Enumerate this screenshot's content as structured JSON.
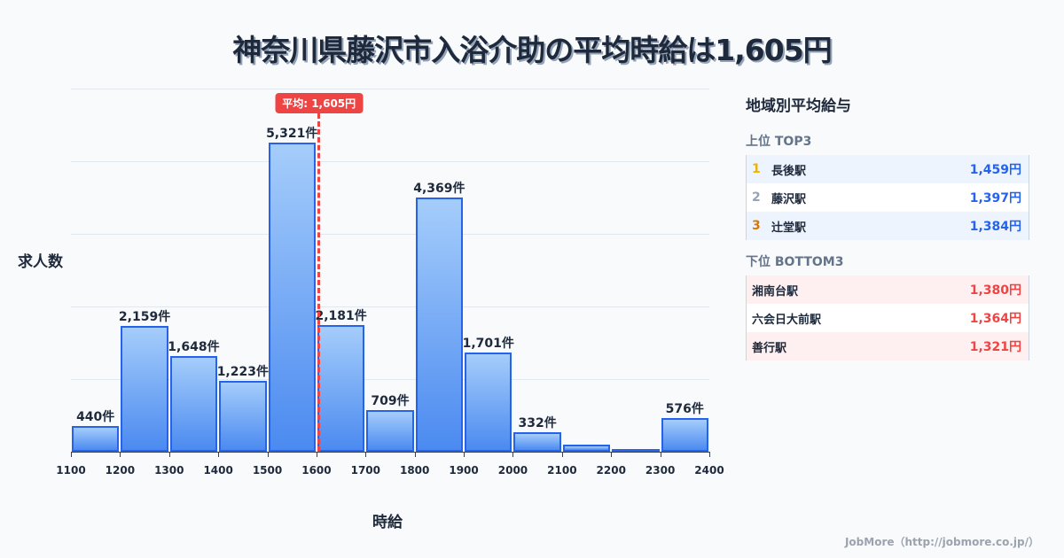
{
  "title": "神奈川県藤沢市入浴介助の平均時給は1,605円",
  "chart_data": {
    "type": "bar",
    "title": "神奈川県藤沢市入浴介助の平均時給は1,605円",
    "xlabel": "時給",
    "ylabel": "求人数",
    "x_ticks": [
      "1100",
      "1200",
      "1300",
      "1400",
      "1500",
      "1600",
      "1700",
      "1800",
      "1900",
      "2000",
      "2100",
      "2200",
      "2300",
      "2400"
    ],
    "bins": [
      {
        "from": 1100,
        "to": 1200,
        "value": 440,
        "label": "440件"
      },
      {
        "from": 1200,
        "to": 1300,
        "value": 2159,
        "label": "2,159件"
      },
      {
        "from": 1300,
        "to": 1400,
        "value": 1648,
        "label": "1,648件"
      },
      {
        "from": 1400,
        "to": 1500,
        "value": 1223,
        "label": "1,223件"
      },
      {
        "from": 1500,
        "to": 1600,
        "value": 5321,
        "label": "5,321件"
      },
      {
        "from": 1600,
        "to": 1700,
        "value": 2181,
        "label": "2,181件"
      },
      {
        "from": 1700,
        "to": 1800,
        "value": 709,
        "label": "709件"
      },
      {
        "from": 1800,
        "to": 1900,
        "value": 4369,
        "label": "4,369件"
      },
      {
        "from": 1900,
        "to": 2000,
        "value": 1701,
        "label": "1,701件"
      },
      {
        "from": 2000,
        "to": 2100,
        "value": 332,
        "label": "332件"
      },
      {
        "from": 2100,
        "to": 2200,
        "value": 120,
        "label": ""
      },
      {
        "from": 2200,
        "to": 2300,
        "value": 45,
        "label": ""
      },
      {
        "from": 2300,
        "to": 2400,
        "value": 576,
        "label": "576件"
      }
    ],
    "categories": [
      "1100-1200",
      "1200-1300",
      "1300-1400",
      "1400-1500",
      "1500-1600",
      "1600-1700",
      "1700-1800",
      "1800-1900",
      "1900-2000",
      "2000-2100",
      "2100-2200",
      "2200-2300",
      "2300-2400"
    ],
    "values": [
      440,
      2159,
      1648,
      1223,
      5321,
      2181,
      709,
      4369,
      1701,
      332,
      120,
      45,
      576
    ],
    "xlim": [
      1100,
      2400
    ],
    "ylim": [
      0,
      6250
    ],
    "grid": true,
    "average": {
      "value": 1605,
      "label": "平均: 1,605円"
    },
    "colors": {
      "bar_fill_top": "#a5cdfb",
      "bar_fill_bottom": "#4b8af0",
      "bar_border": "#2563eb",
      "average_line": "#ef4444"
    }
  },
  "panel": {
    "title": "地域別平均給与",
    "top_label": "上位 TOP3",
    "top": [
      {
        "rank": "1",
        "name": "長後駅",
        "value": "1,459円",
        "rank_color": "#eab308"
      },
      {
        "rank": "2",
        "name": "藤沢駅",
        "value": "1,397円",
        "rank_color": "#94a3b8"
      },
      {
        "rank": "3",
        "name": "辻堂駅",
        "value": "1,384円",
        "rank_color": "#d97706"
      }
    ],
    "bottom_label": "下位 BOTTOM3",
    "bottom": [
      {
        "name": "湘南台駅",
        "value": "1,380円"
      },
      {
        "name": "六会日大前駅",
        "value": "1,364円"
      },
      {
        "name": "善行駅",
        "value": "1,321円"
      }
    ]
  },
  "footer": "JobMore（http://jobmore.co.jp/）"
}
